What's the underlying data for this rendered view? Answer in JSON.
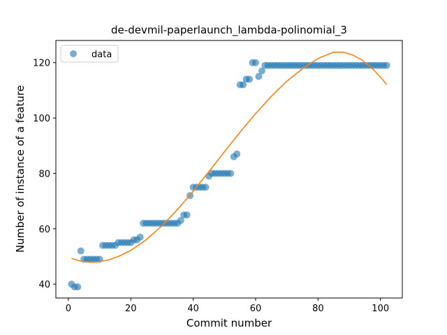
{
  "chart_data": {
    "type": "scatter",
    "title": "de-devmil-paperlaunch_lambda-polinomial_3",
    "xlabel": "Commit number",
    "ylabel": "Number of instance of a feature",
    "xlim": [
      -4,
      107
    ],
    "ylim": [
      35,
      128
    ],
    "xticks": [
      0,
      20,
      40,
      60,
      80,
      100
    ],
    "yticks": [
      40,
      60,
      80,
      100,
      120
    ],
    "grid": false,
    "legend": {
      "position": "top-left",
      "entries": [
        "data"
      ]
    },
    "colors": {
      "scatter": "#1f77b4",
      "fit": "#ff7f0e"
    },
    "series": [
      {
        "name": "data",
        "kind": "scatter",
        "x": [
          1,
          2,
          3,
          4,
          5,
          6,
          7,
          8,
          9,
          10,
          11,
          12,
          13,
          14,
          15,
          16,
          17,
          18,
          19,
          20,
          21,
          22,
          23,
          24,
          25,
          26,
          27,
          28,
          29,
          30,
          31,
          32,
          33,
          34,
          35,
          36,
          37,
          38,
          39,
          40,
          41,
          42,
          43,
          44,
          45,
          46,
          47,
          48,
          49,
          50,
          51,
          52,
          53,
          54,
          55,
          56,
          57,
          58,
          59,
          60,
          61,
          62,
          63,
          64,
          65,
          66,
          67,
          68,
          69,
          70,
          71,
          72,
          73,
          74,
          75,
          76,
          77,
          78,
          79,
          80,
          81,
          82,
          83,
          84,
          85,
          86,
          87,
          88,
          89,
          90,
          91,
          92,
          93,
          94,
          95,
          96,
          97,
          98,
          99,
          100,
          101,
          102
        ],
        "y": [
          40,
          39,
          39,
          52,
          49,
          49,
          49,
          49,
          49,
          49,
          54,
          54,
          54,
          54,
          54,
          55,
          55,
          55,
          55,
          55,
          56,
          56,
          57,
          62,
          62,
          62,
          62,
          62,
          62,
          62,
          62,
          62,
          62,
          62,
          62,
          63,
          65,
          65,
          72,
          75,
          75,
          75,
          75,
          75,
          79,
          80,
          80,
          80,
          80,
          80,
          80,
          80,
          86,
          87,
          112,
          112,
          114,
          114,
          120,
          120,
          115,
          117,
          119,
          119,
          119,
          119,
          119,
          119,
          119,
          119,
          119,
          119,
          119,
          119,
          119,
          119,
          119,
          119,
          119,
          119,
          119,
          119,
          119,
          119,
          119,
          119,
          119,
          119,
          119,
          119,
          119,
          119,
          119,
          119,
          119,
          119,
          119,
          119,
          119,
          119,
          119,
          119
        ]
      },
      {
        "kind": "line",
        "x": [
          1,
          4,
          7,
          10,
          13,
          16,
          20,
          25,
          30,
          35,
          40,
          45,
          50,
          55,
          60,
          65,
          70,
          75,
          80,
          85,
          88,
          91,
          94,
          97,
          100,
          102
        ],
        "y": [
          49.3,
          48.3,
          47.9,
          48.1,
          48.8,
          50.0,
          52.2,
          56.1,
          61.1,
          67.0,
          73.6,
          80.6,
          87.8,
          94.9,
          101.6,
          107.8,
          113.3,
          117.8,
          121.5,
          123.8,
          123.8,
          122.8,
          121.0,
          118.3,
          114.8,
          112.1
        ]
      }
    ]
  }
}
